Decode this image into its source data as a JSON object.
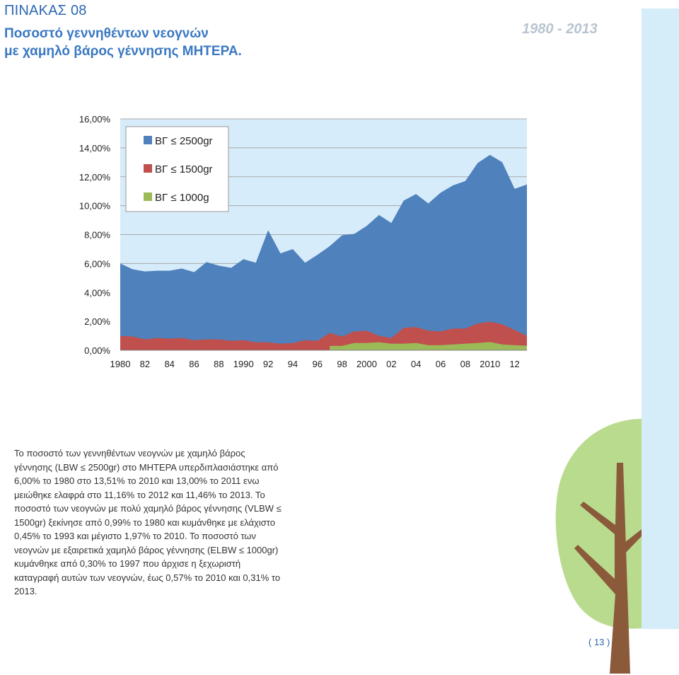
{
  "header": {
    "table_label": "ΠΙΝΑΚΑΣ 08",
    "title_line1": "Ποσοστό γεννηθέντων νεογνών",
    "title_line2": "με χαμηλό βάρος γέννησης ΜΗΤΕΡΑ.",
    "year_range": "1980 - 2013"
  },
  "colors": {
    "accent_blue": "#2d67b2",
    "plot_background": "#d6ecfa",
    "strip_background": "#d5ecf9",
    "tree_foliage": "#b9db8e",
    "tree_trunk": "#8a5a3b"
  },
  "chart_data": {
    "type": "area",
    "stacked": false,
    "x": [
      1980,
      1981,
      1982,
      1983,
      1984,
      1985,
      1986,
      1987,
      1988,
      1989,
      1990,
      1991,
      1992,
      1993,
      1994,
      1995,
      1996,
      1997,
      1998,
      1999,
      2000,
      2001,
      2002,
      2003,
      2004,
      2005,
      2006,
      2007,
      2008,
      2009,
      2010,
      2011,
      2012,
      2013
    ],
    "x_tick_values": [
      1980,
      1982,
      1984,
      1986,
      1988,
      1990,
      1992,
      1994,
      1996,
      1998,
      2000,
      2002,
      2004,
      2006,
      2008,
      2010,
      2012
    ],
    "x_tick_labels": [
      "1980",
      "82",
      "84",
      "86",
      "88",
      "1990",
      "92",
      "94",
      "96",
      "98",
      "2000",
      "02",
      "04",
      "06",
      "08",
      "2010",
      "12"
    ],
    "ylim": [
      0,
      16
    ],
    "y_ticks": [
      0,
      2,
      4,
      6,
      8,
      10,
      12,
      14,
      16
    ],
    "y_tick_labels": [
      "0,00%",
      "2,00%",
      "4,00%",
      "6,00%",
      "8,00%",
      "10,00%",
      "12,00%",
      "14,00%",
      "16,00%"
    ],
    "grid": true,
    "legend_position": "top-left",
    "series": [
      {
        "name": "ΒΓ ≤ 2500gr",
        "color": "#4f81bd",
        "values": [
          6.0,
          5.6,
          5.45,
          5.5,
          5.5,
          5.65,
          5.4,
          6.1,
          5.85,
          5.7,
          6.3,
          6.05,
          8.3,
          6.7,
          7.0,
          6.05,
          6.6,
          7.2,
          7.95,
          8.05,
          8.6,
          9.35,
          8.8,
          10.35,
          10.8,
          10.15,
          10.9,
          11.4,
          11.7,
          12.95,
          13.51,
          13.0,
          11.16,
          11.46
        ]
      },
      {
        "name": "ΒΓ ≤ 1500gr",
        "color": "#c0504d",
        "values": [
          0.99,
          0.95,
          0.75,
          0.85,
          0.8,
          0.85,
          0.7,
          0.75,
          0.75,
          0.65,
          0.7,
          0.55,
          0.55,
          0.45,
          0.5,
          0.7,
          0.65,
          1.2,
          0.95,
          1.3,
          1.35,
          1.0,
          0.85,
          1.55,
          1.6,
          1.35,
          1.3,
          1.5,
          1.5,
          1.85,
          1.97,
          1.8,
          1.4,
          1.0
        ]
      },
      {
        "name": "ΒΓ ≤ 1000g",
        "color": "#9bbb59",
        "values": [
          null,
          null,
          null,
          null,
          null,
          null,
          null,
          null,
          null,
          null,
          null,
          null,
          null,
          null,
          null,
          null,
          null,
          0.3,
          0.3,
          0.5,
          0.5,
          0.55,
          0.45,
          0.45,
          0.5,
          0.35,
          0.35,
          0.4,
          0.45,
          0.5,
          0.57,
          0.4,
          0.35,
          0.31
        ]
      }
    ]
  },
  "description": {
    "paragraph": "Το ποσοστό των γεννηθέντων νεογνών με χαμηλό βάρος γέννησης (LBW ≤ 2500gr) στο ΜΗΤΕΡΑ υπερδιπλασιάστηκε από 6,00% το 1980 στο 13,51% το 2010 και 13,00% το 2011 ενω μειώθηκε ελαφρά στο 11,16% το 2012 και 11,46% το 2013. Το ποσοστό των νεογνών με πολύ χαμηλό βάρος γέννησης (VLBW ≤ 1500gr) ξεκίνησε από 0,99% το 1980 και κυμάνθηκε με ελάχιστο 0,45% το 1993 και μέγιστο 1,97% το 2010. Το ποσοστό των νεογνών με εξαιρετικά χαμηλό βάρος γέννησης (ELBW ≤ 1000gr) κυμάνθηκε από 0,30% το 1997 που άρχισε η ξεχωριστή καταγραφή αυτών των νεογνών, έως 0,57% το 2010 και 0,31% το 2013."
  },
  "footer": {
    "page_number": "( 13 )"
  }
}
